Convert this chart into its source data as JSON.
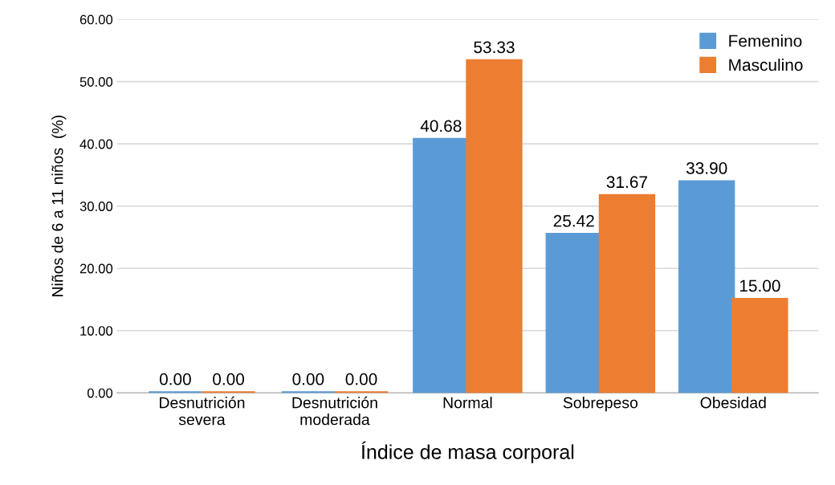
{
  "chart_data": {
    "type": "bar",
    "xlabel": "Índice de masa corporal",
    "ylabel": "Niños de 6 a 11 niños  (%)",
    "categories": [
      "Desnutrición\nsevera",
      "Desnutrición\nmoderada",
      "Normal",
      "Sobrepeso",
      "Obesidad"
    ],
    "series": [
      {
        "name": "Femenino",
        "color": "#5b9bd5",
        "values": [
          0,
          0,
          40.68,
          25.42,
          33.9
        ],
        "value_labels": [
          "0.00",
          "0.00",
          "40.68",
          "25.42",
          "33.90"
        ]
      },
      {
        "name": "Masculino",
        "color": "#ed7d31",
        "values": [
          0,
          0,
          53.33,
          31.67,
          15
        ],
        "value_labels": [
          "0.00",
          "0.00",
          "53.33",
          "31.67",
          "15.00"
        ]
      }
    ],
    "ylim": [
      0,
      60
    ],
    "yticks": [
      {
        "value": 0,
        "label": "0.00"
      },
      {
        "value": 10,
        "label": "10.00"
      },
      {
        "value": 20,
        "label": "20.00"
      },
      {
        "value": 30,
        "label": "30.00"
      },
      {
        "value": 40,
        "label": "40.00"
      },
      {
        "value": 50,
        "label": "50.00"
      },
      {
        "value": 60,
        "label": "60.00"
      }
    ],
    "grid": "y",
    "legend": "top right"
  }
}
